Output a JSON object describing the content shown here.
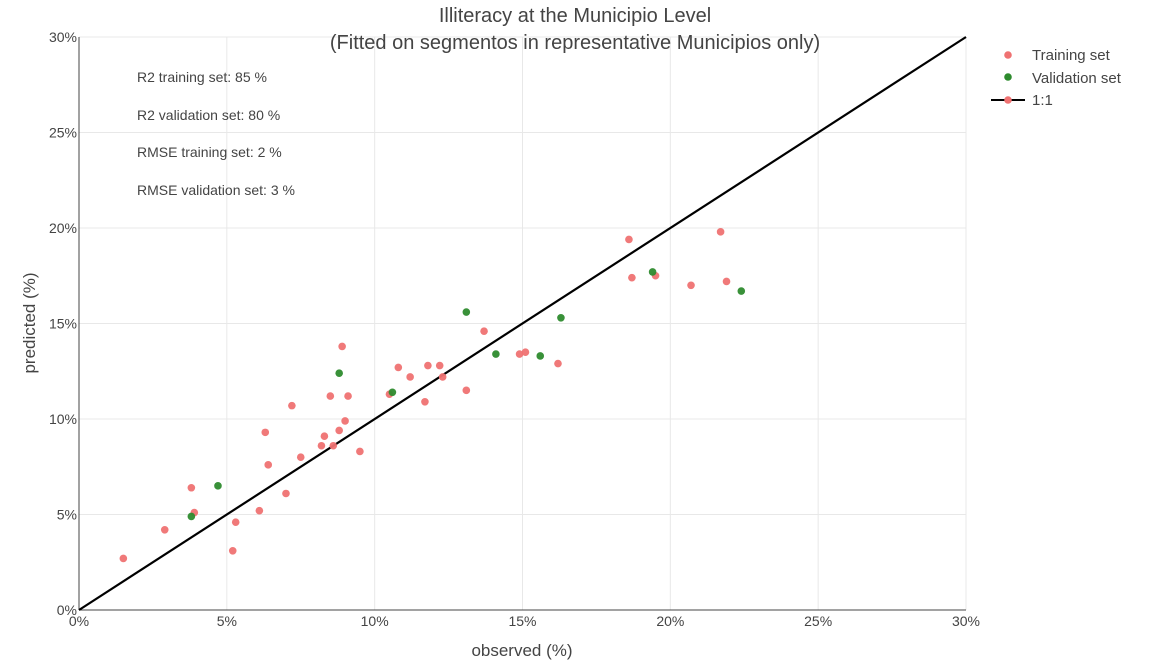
{
  "chart_data": {
    "type": "scatter",
    "title": "Illiteracy at the Municipio Level",
    "subtitle": "(Fitted on segmentos in representative Municipios only)",
    "xlabel": "observed (%)",
    "ylabel": "predicted (%)",
    "xlim": [
      0,
      30
    ],
    "ylim": [
      0,
      30
    ],
    "x_ticks": [
      0,
      5,
      10,
      15,
      20,
      25,
      30
    ],
    "y_ticks": [
      0,
      5,
      10,
      15,
      20,
      25,
      30
    ],
    "x_tick_labels": [
      "0%",
      "5%",
      "10%",
      "15%",
      "20%",
      "25%",
      "30%"
    ],
    "y_tick_labels": [
      "0%",
      "5%",
      "10%",
      "15%",
      "20%",
      "25%",
      "30%"
    ],
    "grid": true,
    "legend_position": "top-right",
    "annotations": [
      "R2 training set: 85 %",
      "R2 validation set: 80 %",
      "RMSE training set: 2 %",
      "RMSE validation set: 3 %"
    ],
    "series": [
      {
        "name": "Training set",
        "color": "#ef7272",
        "points": [
          [
            1.5,
            2.7
          ],
          [
            2.9,
            4.2
          ],
          [
            3.8,
            6.4
          ],
          [
            3.9,
            5.1
          ],
          [
            5.2,
            3.1
          ],
          [
            5.3,
            4.6
          ],
          [
            6.1,
            5.2
          ],
          [
            6.3,
            9.3
          ],
          [
            6.4,
            7.6
          ],
          [
            7.0,
            6.1
          ],
          [
            7.2,
            10.7
          ],
          [
            7.5,
            8.0
          ],
          [
            8.2,
            8.6
          ],
          [
            8.3,
            9.1
          ],
          [
            8.5,
            11.2
          ],
          [
            8.6,
            8.6
          ],
          [
            8.8,
            9.4
          ],
          [
            8.9,
            13.8
          ],
          [
            9.0,
            9.9
          ],
          [
            9.1,
            11.2
          ],
          [
            9.5,
            8.3
          ],
          [
            10.5,
            11.3
          ],
          [
            10.8,
            12.7
          ],
          [
            11.2,
            12.2
          ],
          [
            11.7,
            10.9
          ],
          [
            11.8,
            12.8
          ],
          [
            12.2,
            12.8
          ],
          [
            12.3,
            12.2
          ],
          [
            13.1,
            11.5
          ],
          [
            13.7,
            14.6
          ],
          [
            14.9,
            13.4
          ],
          [
            15.1,
            13.5
          ],
          [
            16.2,
            12.9
          ],
          [
            18.6,
            19.4
          ],
          [
            18.7,
            17.4
          ],
          [
            19.5,
            17.5
          ],
          [
            20.7,
            17.0
          ],
          [
            21.7,
            19.8
          ],
          [
            21.9,
            17.2
          ]
        ]
      },
      {
        "name": "Validation set",
        "color": "#2e8b2e",
        "points": [
          [
            3.8,
            4.9
          ],
          [
            4.7,
            6.5
          ],
          [
            8.8,
            12.4
          ],
          [
            10.6,
            11.4
          ],
          [
            13.1,
            15.6
          ],
          [
            14.1,
            13.4
          ],
          [
            15.6,
            13.3
          ],
          [
            16.3,
            15.3
          ],
          [
            19.4,
            17.7
          ],
          [
            22.4,
            16.7
          ]
        ]
      },
      {
        "name": "1:1",
        "color": "#000000",
        "marker_color": "#ef7272",
        "line": [
          [
            0,
            0
          ],
          [
            30,
            30
          ]
        ]
      }
    ]
  }
}
